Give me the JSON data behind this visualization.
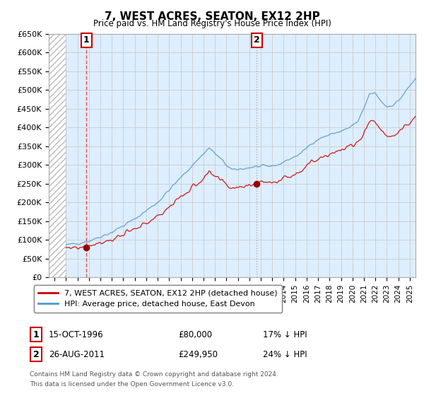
{
  "title": "7, WEST ACRES, SEATON, EX12 2HP",
  "subtitle": "Price paid vs. HM Land Registry's House Price Index (HPI)",
  "ylabel_values": [
    "£0",
    "£50K",
    "£100K",
    "£150K",
    "£200K",
    "£250K",
    "£300K",
    "£350K",
    "£400K",
    "£450K",
    "£500K",
    "£550K",
    "£600K",
    "£650K"
  ],
  "ylim": [
    0,
    650000
  ],
  "yticks": [
    0,
    50000,
    100000,
    150000,
    200000,
    250000,
    300000,
    350000,
    400000,
    450000,
    500000,
    550000,
    600000,
    650000
  ],
  "xlim_start": 1993.5,
  "xlim_end": 2025.5,
  "data_start_year": 1995.0,
  "sale1_x": 1996.79,
  "sale1_y": 80000,
  "sale2_x": 2011.65,
  "sale2_y": 249950,
  "line_red_color": "#cc0000",
  "line_blue_color": "#5599cc",
  "marker_color": "#990000",
  "sale1_vline_color": "#ee3333",
  "sale1_vline_style": "--",
  "sale2_vline_color": "#aaaaaa",
  "sale2_vline_style": ":",
  "grid_color": "#cccccc",
  "bg_color": "#ddeeff",
  "plot_bg_color": "#ddeeff",
  "legend_line1": "7, WEST ACRES, SEATON, EX12 2HP (detached house)",
  "legend_line2": "HPI: Average price, detached house, East Devon",
  "sale1_label": "1",
  "sale1_date": "15-OCT-1996",
  "sale1_price": "£80,000",
  "sale1_hpi_text": "17% ↓ HPI",
  "sale2_label": "2",
  "sale2_date": "26-AUG-2011",
  "sale2_price": "£249,950",
  "sale2_hpi_text": "24% ↓ HPI",
  "footer1": "Contains HM Land Registry data © Crown copyright and database right 2024.",
  "footer2": "This data is licensed under the Open Government Licence v3.0."
}
